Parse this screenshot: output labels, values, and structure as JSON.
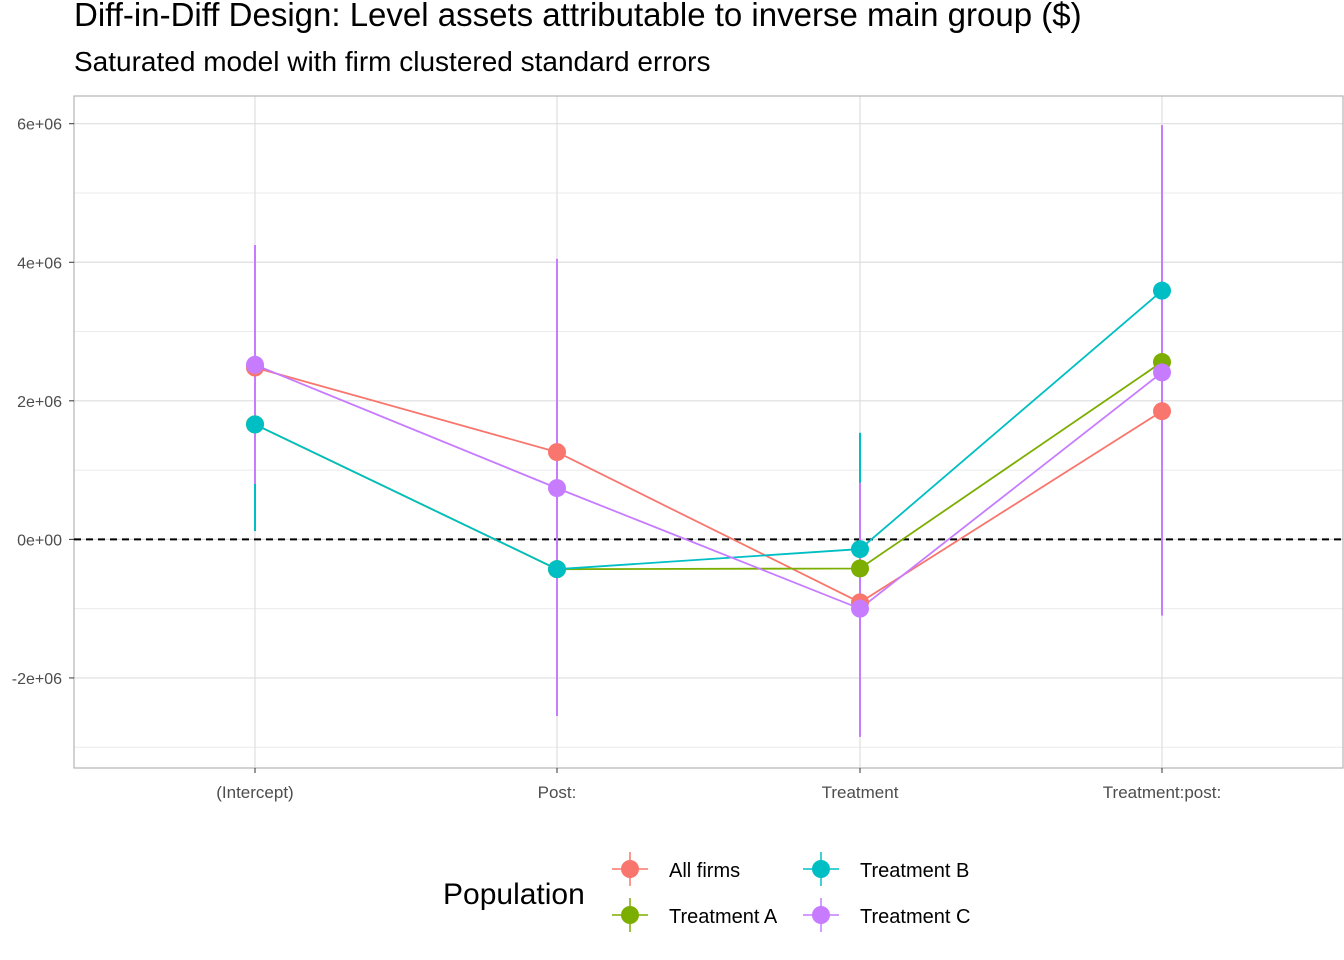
{
  "chart_data": {
    "type": "scatter",
    "title": "Diff-in-Diff Design: Level assets attributable to inverse main group  ($)",
    "subtitle": "Saturated model with firm clustered standard errors",
    "categories": [
      "(Intercept)",
      "Post:",
      "Treatment",
      "Treatment:post:"
    ],
    "y_ticks": [
      -2000000,
      0,
      2000000,
      4000000,
      6000000
    ],
    "y_tick_labels": [
      "-2e+06",
      "0e+00",
      "2e+06",
      "4e+06",
      "6e+06"
    ],
    "ylim": [
      -3300000,
      6400000
    ],
    "reference_line": 0,
    "grid": true,
    "legend": {
      "title": "Population",
      "placement": "bottom"
    },
    "series": [
      {
        "name": "All firms",
        "color": "#F8766D",
        "values": [
          2480000,
          1260000,
          -910000,
          1850000
        ],
        "lower": [
          2480000,
          1260000,
          -910000,
          1850000
        ],
        "upper": [
          2480000,
          1260000,
          -910000,
          1850000
        ]
      },
      {
        "name": "Treatment A",
        "color": "#7CAE00",
        "values": [
          1660000,
          -430000,
          -420000,
          2560000
        ],
        "lower": [
          800000,
          -430000,
          -420000,
          2560000
        ],
        "upper": [
          1660000,
          -430000,
          -420000,
          2560000
        ]
      },
      {
        "name": "Treatment B",
        "color": "#00BFC4",
        "values": [
          1660000,
          -430000,
          -140000,
          3590000
        ],
        "lower": [
          120000,
          -430000,
          -900000,
          3590000
        ],
        "upper": [
          1660000,
          -430000,
          1540000,
          3590000
        ]
      },
      {
        "name": "Treatment C",
        "color": "#C77CFF",
        "values": [
          2520000,
          740000,
          -1000000,
          2410000
        ],
        "lower": [
          800000,
          -2550000,
          -2850000,
          -1100000
        ],
        "upper": [
          4250000,
          4050000,
          820000,
          5980000
        ]
      }
    ]
  }
}
